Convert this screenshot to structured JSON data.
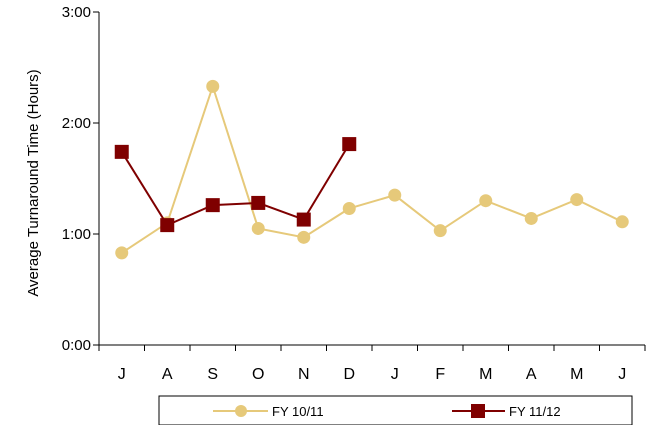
{
  "chart_data": {
    "type": "line",
    "title": "",
    "xlabel": "",
    "ylabel": "Average Turnaround Time (Hours)",
    "categories": [
      "J",
      "A",
      "S",
      "O",
      "N",
      "D",
      "J",
      "F",
      "M",
      "A",
      "M",
      "J"
    ],
    "y_ticks": [
      "0:00",
      "1:00",
      "2:00",
      "3:00"
    ],
    "ylim": [
      0,
      3
    ],
    "y_unit": "hours",
    "grid": false,
    "legend_position": "bottom",
    "series": [
      {
        "name": "FY 10/11",
        "color": "#e6c97a",
        "marker": "circle",
        "values": [
          0.83,
          1.1,
          2.33,
          1.05,
          0.97,
          1.23,
          1.35,
          1.03,
          1.3,
          1.14,
          1.31,
          1.11
        ]
      },
      {
        "name": "FY 11/12",
        "color": "#7f0000",
        "marker": "square",
        "values": [
          1.74,
          1.08,
          1.26,
          1.28,
          1.13,
          1.81,
          null,
          null,
          null,
          null,
          null,
          null
        ]
      }
    ]
  }
}
